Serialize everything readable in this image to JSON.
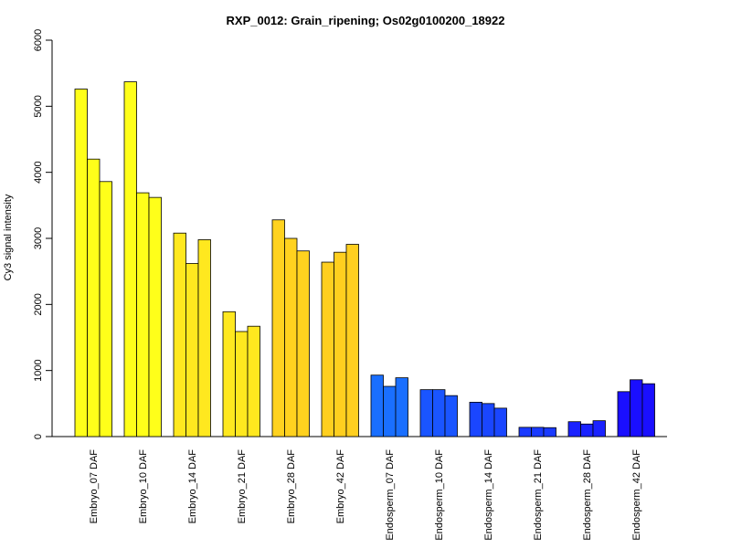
{
  "chart_data": {
    "type": "bar",
    "title": "RXP_0012: Grain_ripening; Os02g0100200_18922",
    "ylabel": "Cy3 signal intensity",
    "xlabel": "",
    "ylim": [
      0,
      6000
    ],
    "yticks": [
      0,
      1000,
      2000,
      3000,
      4000,
      5000,
      6000
    ],
    "grid": false,
    "categories": [
      "Embryo_07 DAF",
      "Embryo_10 DAF",
      "Embryo_14 DAF",
      "Embryo_21 DAF",
      "Embryo_28 DAF",
      "Embryo_42 DAF",
      "Endosperm_07 DAF",
      "Endosperm_10 DAF",
      "Endosperm_14 DAF",
      "Endosperm_21 DAF",
      "Endosperm_28 DAF",
      "Endosperm_42 DAF"
    ],
    "colors": [
      "#ffff1a",
      "#ffff1a",
      "#ffe81f",
      "#ffe81f",
      "#ffd21f",
      "#ffcf1f",
      "#1a6fff",
      "#1a55ff",
      "#1a46ff",
      "#1a3aff",
      "#1a22ff",
      "#1a0fff"
    ],
    "replicates": [
      [
        5260,
        4200,
        3860
      ],
      [
        5370,
        3690,
        3620
      ],
      [
        3080,
        2620,
        2980
      ],
      [
        1890,
        1590,
        1670
      ],
      [
        3280,
        3000,
        2810
      ],
      [
        2640,
        2790,
        2910
      ],
      [
        930,
        760,
        890
      ],
      [
        710,
        710,
        620
      ],
      [
        520,
        500,
        430
      ],
      [
        140,
        140,
        135
      ],
      [
        225,
        190,
        240
      ],
      [
        680,
        860,
        800
      ]
    ]
  }
}
